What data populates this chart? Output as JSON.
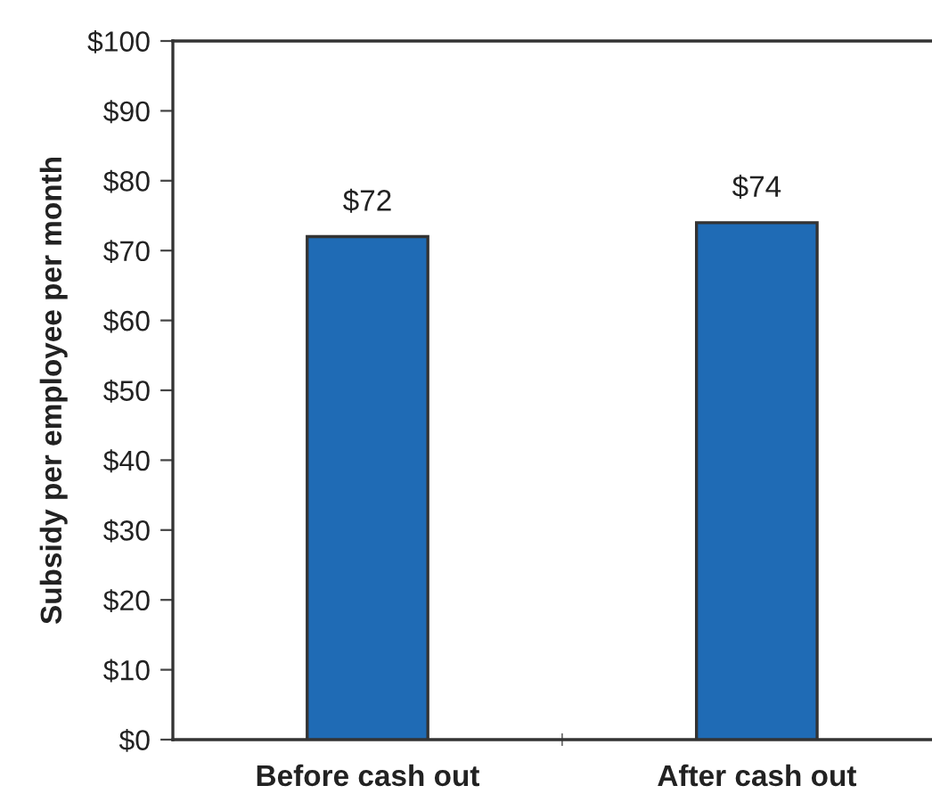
{
  "chart_data": {
    "type": "bar",
    "ylabel": "Subsidy per employee per month",
    "categories": [
      "Before cash out",
      "After cash out"
    ],
    "values": [
      72,
      74
    ],
    "value_labels": [
      "$72",
      "$74"
    ],
    "color": "#1f6bb5",
    "ylim": [
      0,
      100
    ],
    "yticks": [
      {
        "value": 0,
        "label": "$0"
      },
      {
        "value": 10,
        "label": "$10"
      },
      {
        "value": 20,
        "label": "$20"
      },
      {
        "value": 30,
        "label": "$30"
      },
      {
        "value": 40,
        "label": "$40"
      },
      {
        "value": 50,
        "label": "$50"
      },
      {
        "value": 60,
        "label": "$60"
      },
      {
        "value": 70,
        "label": "$70"
      },
      {
        "value": 80,
        "label": "$80"
      },
      {
        "value": 90,
        "label": "$90"
      },
      {
        "value": 100,
        "label": "$100"
      }
    ],
    "grid": false,
    "legend": false
  }
}
